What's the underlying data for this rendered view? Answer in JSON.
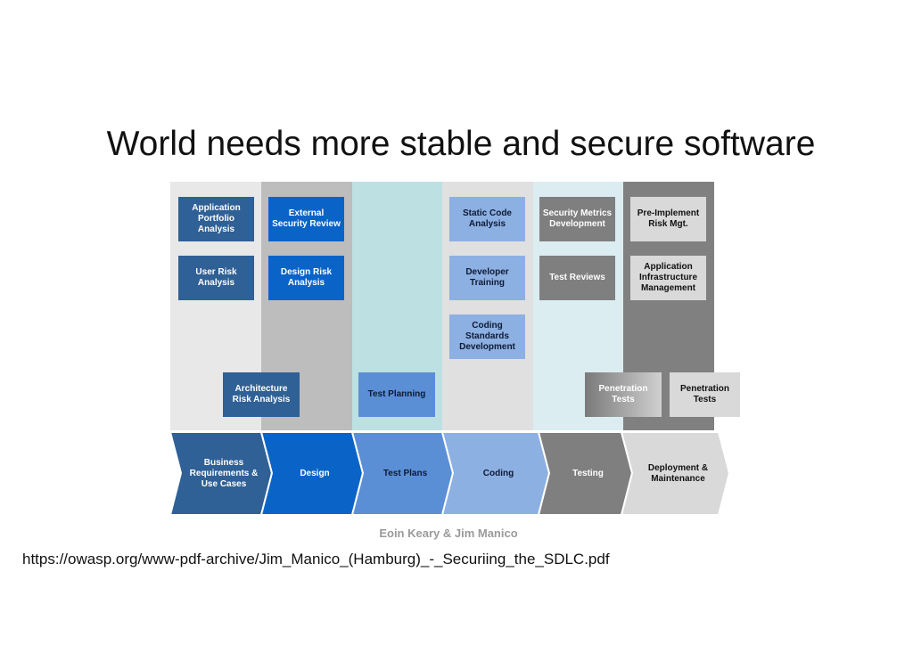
{
  "title": "World needs more stable and secure software",
  "colors": {
    "dark_blue": "#2f6096",
    "blue": "#0a64c8",
    "mid_blue": "#5a8fd6",
    "light_blue": "#8db0e3",
    "gray": "#7f7f7f",
    "light_gray": "#d9d9d9"
  },
  "activities": {
    "app_portfolio": "Application Portfolio Analysis",
    "user_risk": "User Risk Analysis",
    "external_review": "External Security Review",
    "design_risk": "Design Risk Analysis",
    "static_code": "Static Code Analysis",
    "dev_training": "Developer Training",
    "coding_standards": "Coding Standards Development",
    "security_metrics": "Security Metrics Development",
    "test_reviews": "Test Reviews",
    "pre_implement": "Pre-Implement Risk Mgt.",
    "app_infra": "Application Infrastructure Management",
    "arch_risk": "Architecture Risk Analysis",
    "test_planning": "Test Planning",
    "pen_tests_1": "Penetration Tests",
    "pen_tests_2": "Penetration Tests"
  },
  "phases": [
    "Business Requirements & Use Cases",
    "Design",
    "Test Plans",
    "Coding",
    "Testing",
    "Deployment & Maintenance"
  ],
  "credit": "Eoin Keary & Jim Manico",
  "url": "https://owasp.org/www-pdf-archive/Jim_Manico_(Hamburg)_-_Securiing_the_SDLC.pdf"
}
